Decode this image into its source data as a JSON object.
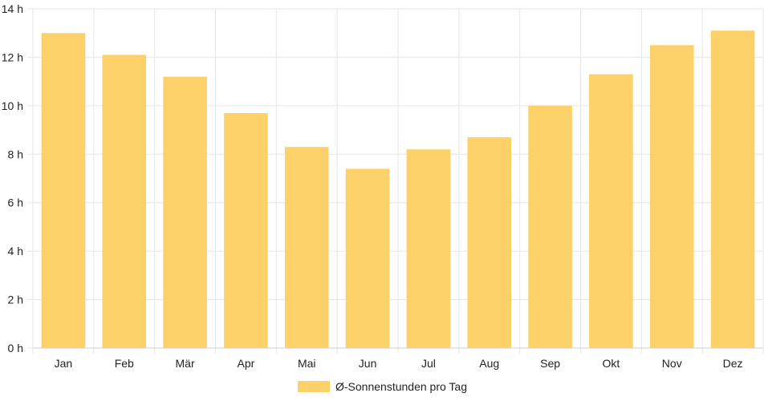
{
  "chart_data": {
    "type": "bar",
    "categories": [
      "Jan",
      "Feb",
      "Mär",
      "Apr",
      "Mai",
      "Jun",
      "Jul",
      "Aug",
      "Sep",
      "Okt",
      "Nov",
      "Dez"
    ],
    "series": [
      {
        "name": "Ø-Sonnenstunden pro Tag",
        "values": [
          13.0,
          12.1,
          11.2,
          9.7,
          8.3,
          7.4,
          8.2,
          8.7,
          10.0,
          11.3,
          12.5,
          13.1
        ],
        "color": "#fdd16a"
      }
    ],
    "y_ticks": [
      "0 h",
      "2 h",
      "4 h",
      "6 h",
      "8 h",
      "10 h",
      "12 h",
      "14 h"
    ],
    "ylim": [
      0,
      14
    ],
    "y_step": 2,
    "grid": true,
    "legend_position": "bottom-center",
    "title": "",
    "xlabel": "",
    "ylabel": ""
  }
}
